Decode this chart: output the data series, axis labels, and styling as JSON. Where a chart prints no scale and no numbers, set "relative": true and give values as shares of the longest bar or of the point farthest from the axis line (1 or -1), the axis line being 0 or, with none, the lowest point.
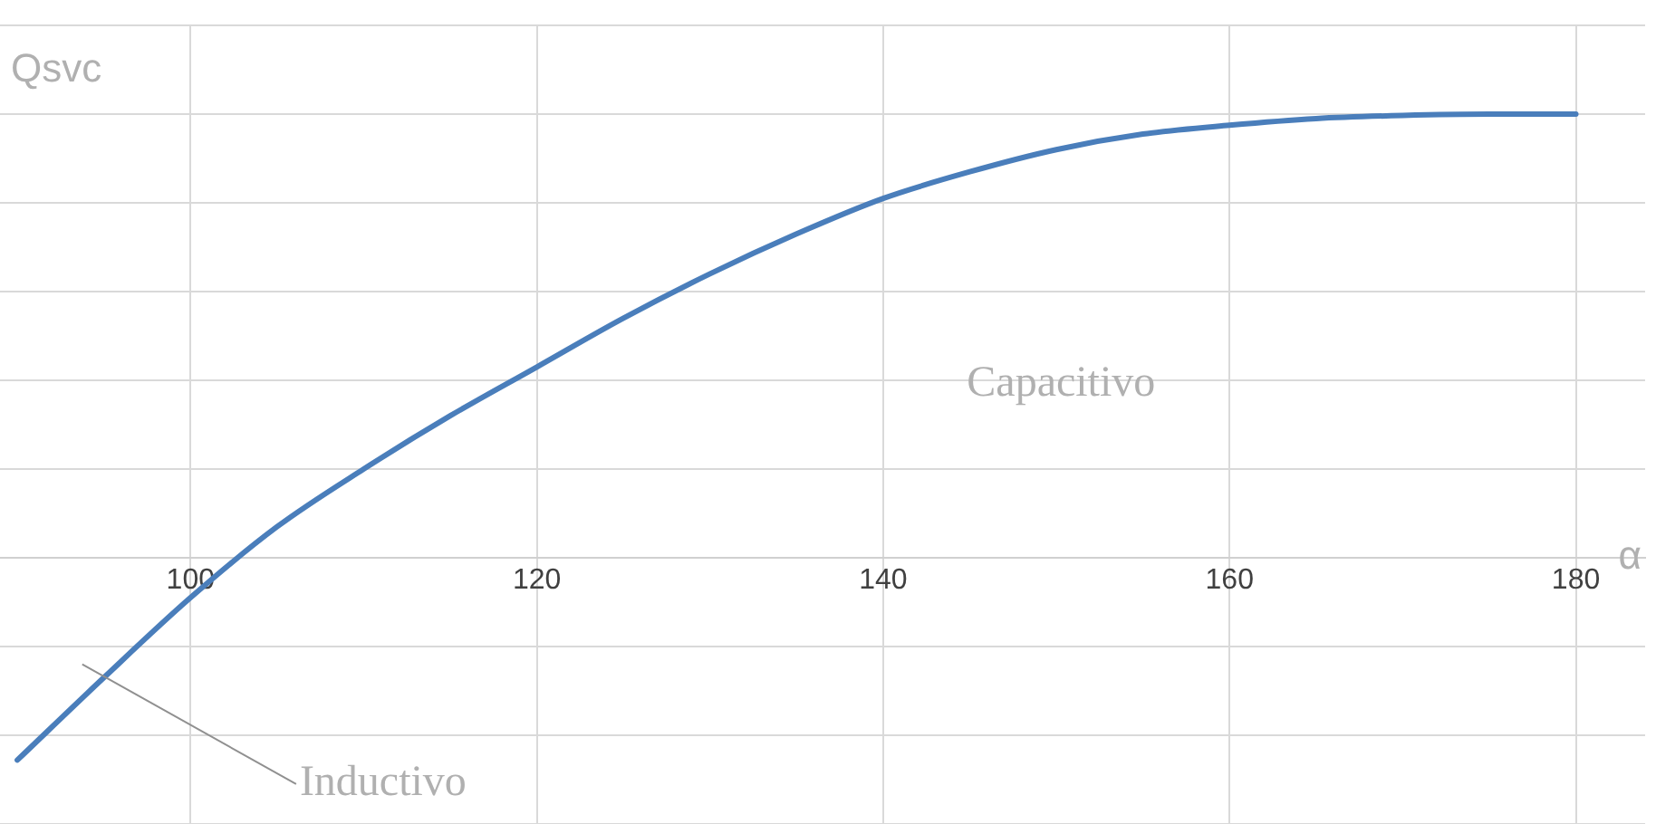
{
  "chart_data": {
    "type": "line",
    "relative": true,
    "xlabel": "α",
    "ylabel": "Qsvc",
    "x": [
      90,
      95,
      100,
      105,
      110,
      115,
      120,
      125,
      130,
      135,
      140,
      145,
      150,
      155,
      160,
      165,
      170,
      175,
      180
    ],
    "series": [
      {
        "color": "#4a7ebb",
        "values": [
          -0.456,
          -0.27,
          -0.09,
          0.07,
          0.2,
          0.32,
          0.43,
          0.54,
          0.64,
          0.73,
          0.81,
          0.87,
          0.92,
          0.955,
          0.975,
          0.99,
          0.997,
          1,
          1
        ]
      }
    ],
    "xlim": [
      89,
      184
    ],
    "xticks": [
      100,
      120,
      140,
      160,
      180
    ],
    "annotations": [
      "Capacitivo",
      "Inductivo"
    ],
    "grid": true,
    "legend": false,
    "marker": "none",
    "line_style": "solid"
  }
}
